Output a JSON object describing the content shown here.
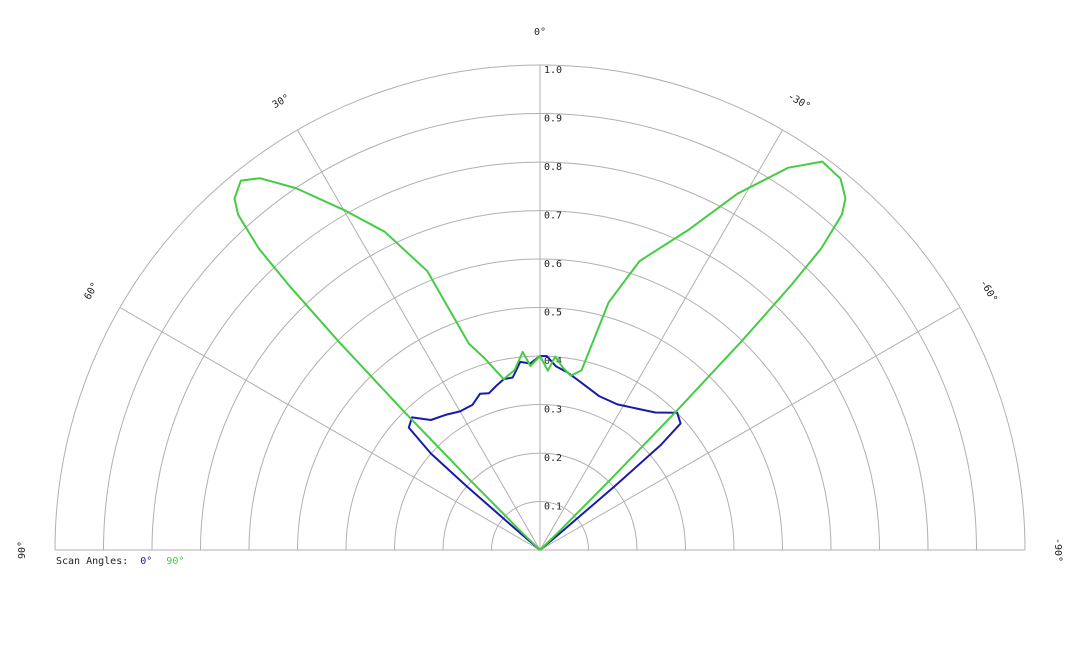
{
  "chart_data": {
    "type": "polar",
    "rlim": [
      0,
      1
    ],
    "rticks": [
      0.1,
      0.2,
      0.3,
      0.4,
      0.5,
      0.6,
      0.7,
      0.8,
      0.9,
      {
        "value": 1,
        "label": "1.0"
      }
    ],
    "thetalim": [
      -90,
      90
    ],
    "thetaticks": [
      {
        "value": 90,
        "label": "90°"
      },
      {
        "value": 60,
        "label": "60°"
      },
      {
        "value": 30,
        "label": "30°"
      },
      {
        "value": 0,
        "label": "0°"
      },
      {
        "value": -30,
        "label": "-30°"
      },
      {
        "value": -60,
        "label": "-60°"
      },
      {
        "value": -90,
        "label": "-90°"
      }
    ],
    "grid": true,
    "legend_title": "Scan Angles:",
    "legend_position": "bottom-left",
    "series": [
      {
        "name": "0°",
        "color": "#1a1aaa",
        "x": [
          -50,
          -49.5,
          -49,
          -48,
          -45,
          -40,
          -35,
          -28,
          -21,
          -14,
          -9,
          -5,
          -2,
          0,
          3,
          6,
          9,
          12,
          15,
          18,
          21,
          25,
          30,
          35,
          40,
          44,
          47,
          48.5,
          49,
          49.5
        ],
        "values": [
          0.05,
          0.2,
          0.33,
          0.39,
          0.4,
          0.37,
          0.355,
          0.34,
          0.34,
          0.355,
          0.37,
          0.38,
          0.4,
          0.4,
          0.385,
          0.39,
          0.36,
          0.36,
          0.35,
          0.34,
          0.345,
          0.33,
          0.33,
          0.34,
          0.35,
          0.38,
          0.37,
          0.3,
          0.2,
          0.05
        ]
      },
      {
        "name": "90°",
        "color": "#44cc44",
        "x": [
          -46,
          -45,
          -44.5,
          -44,
          -43.5,
          -43,
          -42,
          -41,
          -39,
          -36,
          -33,
          -29,
          -25,
          -19,
          -15.5,
          -13,
          -10,
          -7,
          -4.5,
          -2.5,
          0,
          3,
          5,
          8,
          12,
          16,
          19,
          21,
          22,
          26,
          30,
          34,
          37,
          39,
          41,
          42,
          43,
          43.5,
          44,
          44.5,
          45,
          46
        ],
        "values": [
          0.05,
          0.2,
          0.4,
          0.6,
          0.75,
          0.85,
          0.93,
          0.96,
          0.985,
          0.99,
          0.94,
          0.84,
          0.73,
          0.63,
          0.53,
          0.38,
          0.365,
          0.38,
          0.4,
          0.37,
          0.4,
          0.38,
          0.41,
          0.375,
          0.36,
          0.41,
          0.45,
          0.55,
          0.62,
          0.73,
          0.81,
          0.9,
          0.96,
          0.98,
          0.96,
          0.93,
          0.85,
          0.75,
          0.6,
          0.4,
          0.2,
          0.05
        ]
      }
    ]
  }
}
